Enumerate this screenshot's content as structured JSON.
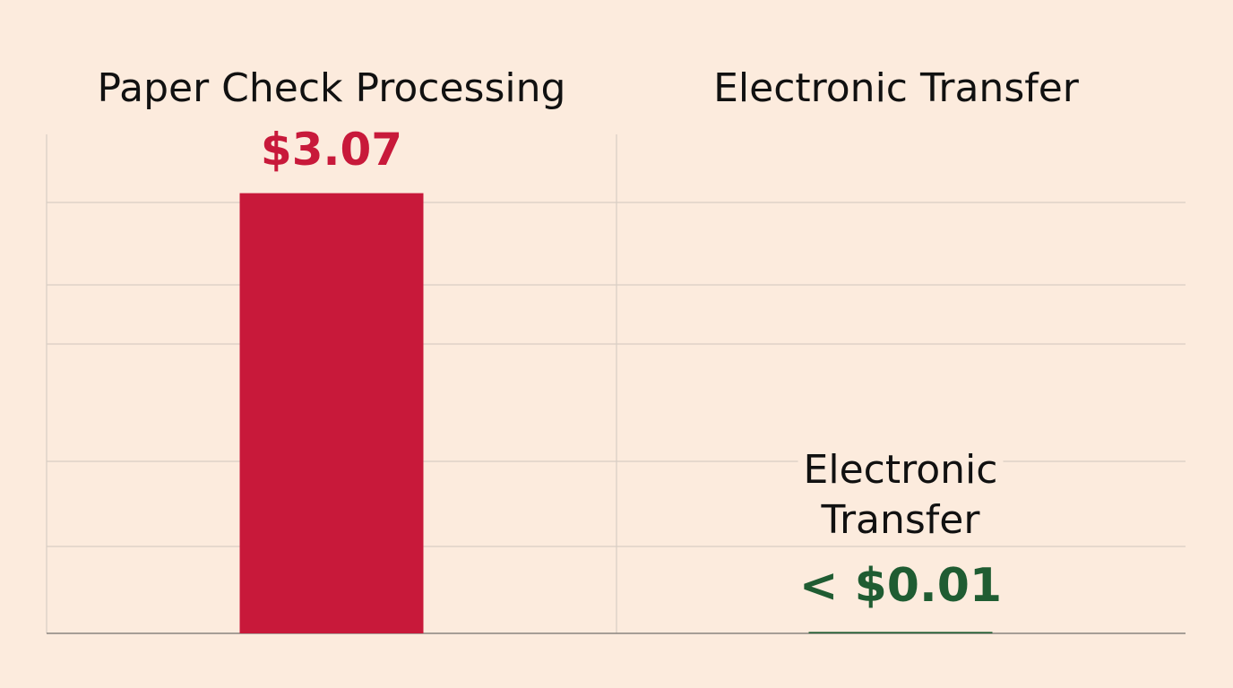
{
  "chart_data": {
    "type": "bar",
    "categories": [
      "Paper Check Processing",
      "Electronic Transfer"
    ],
    "values": [
      3.07,
      0.01
    ],
    "value_labels": [
      "$3.07",
      "< $0.01"
    ],
    "colors": [
      "#c8193a",
      "#1f5c32"
    ],
    "annotations": [
      {
        "text": "Electronic Transfer",
        "category": 1
      }
    ],
    "ylim": [
      0,
      3.48
    ]
  }
}
